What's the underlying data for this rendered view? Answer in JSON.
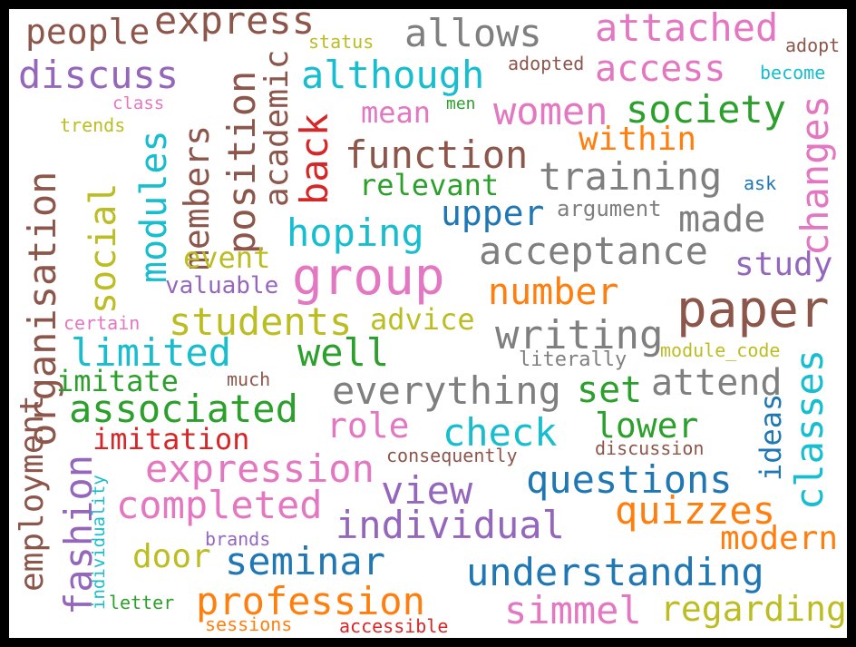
{
  "palette": {
    "brown": "#8c564b",
    "gray": "#7f7f7f",
    "pink": "#e377c2",
    "olive": "#bcbd22",
    "purple": "#9467bd",
    "cyan": "#17becf",
    "green": "#2ca02c",
    "red": "#d62728",
    "orange": "#ff7f0e",
    "blue": "#1f77b4"
  },
  "words": [
    "people",
    "express",
    "status",
    "allows",
    "attached",
    "adopt",
    "discuss",
    "although",
    "adopted",
    "access",
    "become",
    "class",
    "men",
    "mean",
    "women",
    "society",
    "trends",
    "organisation",
    "modules",
    "members",
    "position",
    "academic",
    "back",
    "function",
    "within",
    "changes",
    "social",
    "training",
    "relevant",
    "upper",
    "argument",
    "ask",
    "hoping",
    "made",
    "event",
    "acceptance",
    "group",
    "study",
    "valuable",
    "number",
    "paper",
    "certain",
    "students",
    "advice",
    "limited",
    "well",
    "writing",
    "module_code",
    "literally",
    "much",
    "imitate",
    "attend",
    "everything",
    "set",
    "associated",
    "employment",
    "classes",
    "ideas",
    "check",
    "role",
    "lower",
    "imitation",
    "consequently",
    "discussion",
    "fashion",
    "individuality",
    "expression",
    "questions",
    "view",
    "completed",
    "individual",
    "quizzes",
    "brands",
    "modern",
    "door",
    "seminar",
    "understanding",
    "letter",
    "profession",
    "simmel",
    "regarding",
    "sessions",
    "accessible"
  ]
}
